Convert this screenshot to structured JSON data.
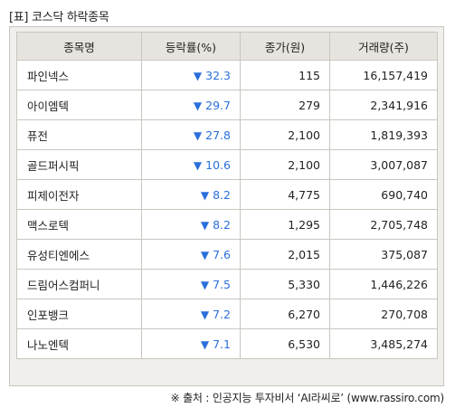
{
  "title": "[표] 코스닥 하락종목",
  "columns": [
    "종목명",
    "등락률(%)",
    "종가(원)",
    "거래량(주)"
  ],
  "arrow_symbol": "▼",
  "rows": [
    {
      "name": "파인넥스",
      "rate": "32.3",
      "price": "115",
      "volume": "16,157,419"
    },
    {
      "name": "아이엠텍",
      "rate": "29.7",
      "price": "279",
      "volume": "2,341,916"
    },
    {
      "name": "퓨전",
      "rate": "27.8",
      "price": "2,100",
      "volume": "1,819,393"
    },
    {
      "name": "골드퍼시픽",
      "rate": "10.6",
      "price": "2,100",
      "volume": "3,007,087"
    },
    {
      "name": "피제이전자",
      "rate": "8.2",
      "price": "4,775",
      "volume": "690,740"
    },
    {
      "name": "맥스로텍",
      "rate": "8.2",
      "price": "1,295",
      "volume": "2,705,748"
    },
    {
      "name": "유성티엔에스",
      "rate": "7.6",
      "price": "2,015",
      "volume": "375,087"
    },
    {
      "name": "드림어스컴퍼니",
      "rate": "7.5",
      "price": "5,330",
      "volume": "1,446,226"
    },
    {
      "name": "인포뱅크",
      "rate": "7.2",
      "price": "6,270",
      "volume": "270,708"
    },
    {
      "name": "나노엔텍",
      "rate": "7.1",
      "price": "6,530",
      "volume": "3,485,274"
    }
  ],
  "source": "※ 출처 : 인공지능 투자비서 ‘AI라씨로’ (www.rassiro.com)",
  "colors": {
    "down": "#2a6fdb",
    "header_bg": "#e7e4df",
    "frame_bg": "#f1efeb",
    "border": "#c9c6bf"
  }
}
